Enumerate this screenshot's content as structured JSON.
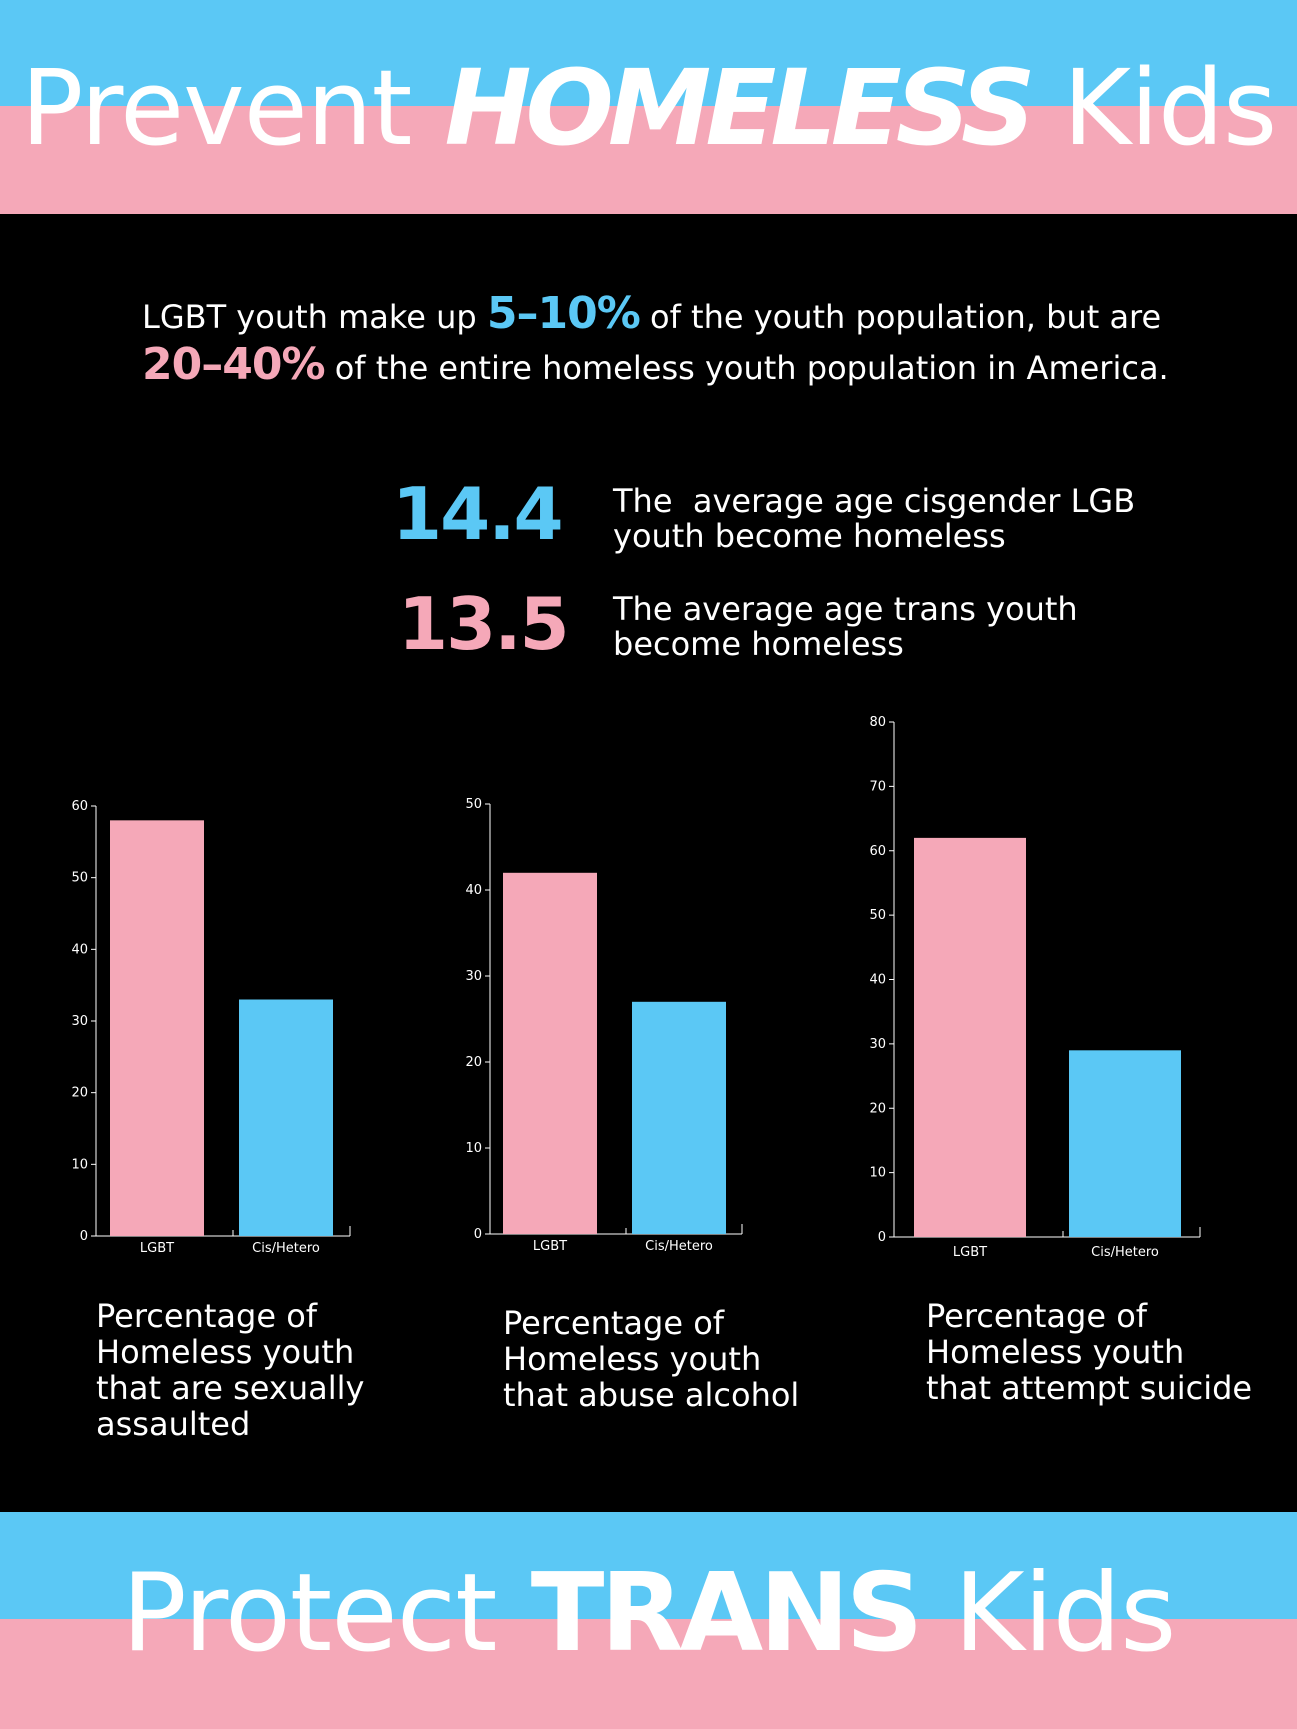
{
  "colors": {
    "blue": "#5BC8F5",
    "pink": "#F5A8B8",
    "white": "#FFFFFF",
    "black": "#000000"
  },
  "header": {
    "word1": "Prevent",
    "word2": "HOMELESS",
    "word3": "Kids"
  },
  "footer": {
    "word1": "Protect",
    "word2": "TRANS",
    "word3": "Kids"
  },
  "intro": {
    "part1": "LGBT youth make up ",
    "pct1": "5–10%",
    "part2": " of the youth population, but are",
    "pct2": "20–40%",
    "part3": " of the entire homeless youth population in America."
  },
  "stats": [
    {
      "value": "14.4",
      "line1": "The  average age cisgender LGB",
      "line2": "youth become homeless"
    },
    {
      "value": "13.5",
      "line1": "The average age trans youth",
      "line2": "become homeless"
    }
  ],
  "chart_data": [
    {
      "type": "bar",
      "categories": [
        "LGBT",
        "Cis/Hetero"
      ],
      "values": [
        58,
        33
      ],
      "ylim": [
        0,
        60
      ],
      "ticks": [
        0,
        10,
        20,
        30,
        40,
        50,
        60
      ],
      "caption": "Percentage of\nHomeless youth\nthat are sexually\nassaulted"
    },
    {
      "type": "bar",
      "categories": [
        "LGBT",
        "Cis/Hetero"
      ],
      "values": [
        42,
        27
      ],
      "ylim": [
        0,
        50
      ],
      "ticks": [
        0,
        10,
        20,
        30,
        40,
        50
      ],
      "caption": "Percentage of\nHomeless youth\nthat abuse alcohol"
    },
    {
      "type": "bar",
      "categories": [
        "LGBT",
        "Cis/Hetero"
      ],
      "values": [
        62,
        29
      ],
      "ylim": [
        0,
        80
      ],
      "ticks": [
        0,
        10,
        20,
        30,
        40,
        50,
        60,
        70,
        80
      ],
      "caption": "Percentage of\nHomeless youth\nthat attempt suicide"
    }
  ]
}
